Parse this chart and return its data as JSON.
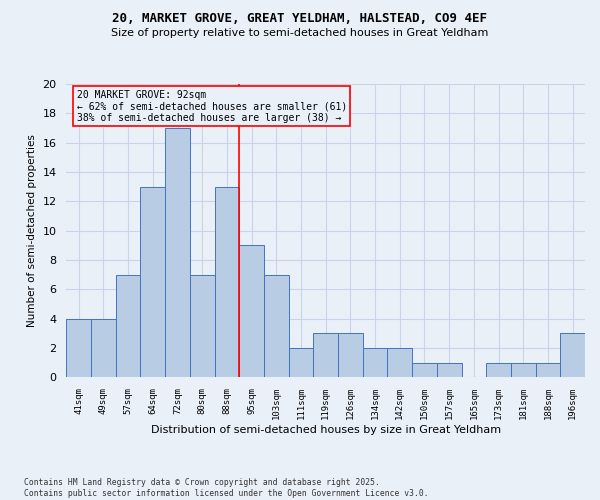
{
  "title": "20, MARKET GROVE, GREAT YELDHAM, HALSTEAD, CO9 4EF",
  "subtitle": "Size of property relative to semi-detached houses in Great Yeldham",
  "xlabel": "Distribution of semi-detached houses by size in Great Yeldham",
  "ylabel": "Number of semi-detached properties",
  "categories": [
    "41sqm",
    "49sqm",
    "57sqm",
    "64sqm",
    "72sqm",
    "80sqm",
    "88sqm",
    "95sqm",
    "103sqm",
    "111sqm",
    "119sqm",
    "126sqm",
    "134sqm",
    "142sqm",
    "150sqm",
    "157sqm",
    "165sqm",
    "173sqm",
    "181sqm",
    "188sqm",
    "196sqm"
  ],
  "values": [
    4,
    4,
    7,
    13,
    17,
    7,
    13,
    9,
    7,
    2,
    3,
    3,
    2,
    2,
    1,
    1,
    0,
    1,
    1,
    1,
    3
  ],
  "bar_color": "#b8cce4",
  "bar_edge_color": "#4472c4",
  "grid_color": "#c8d4e8",
  "bg_color": "#eaf0f8",
  "ref_line_color": "red",
  "annotation_text": "20 MARKET GROVE: 92sqm\n← 62% of semi-detached houses are smaller (61)\n38% of semi-detached houses are larger (38) →",
  "annotation_box_color": "red",
  "footer": "Contains HM Land Registry data © Crown copyright and database right 2025.\nContains public sector information licensed under the Open Government Licence v3.0.",
  "ylim": [
    0,
    20
  ],
  "yticks": [
    0,
    2,
    4,
    6,
    8,
    10,
    12,
    14,
    16,
    18,
    20
  ],
  "ref_line_xindex": 7
}
